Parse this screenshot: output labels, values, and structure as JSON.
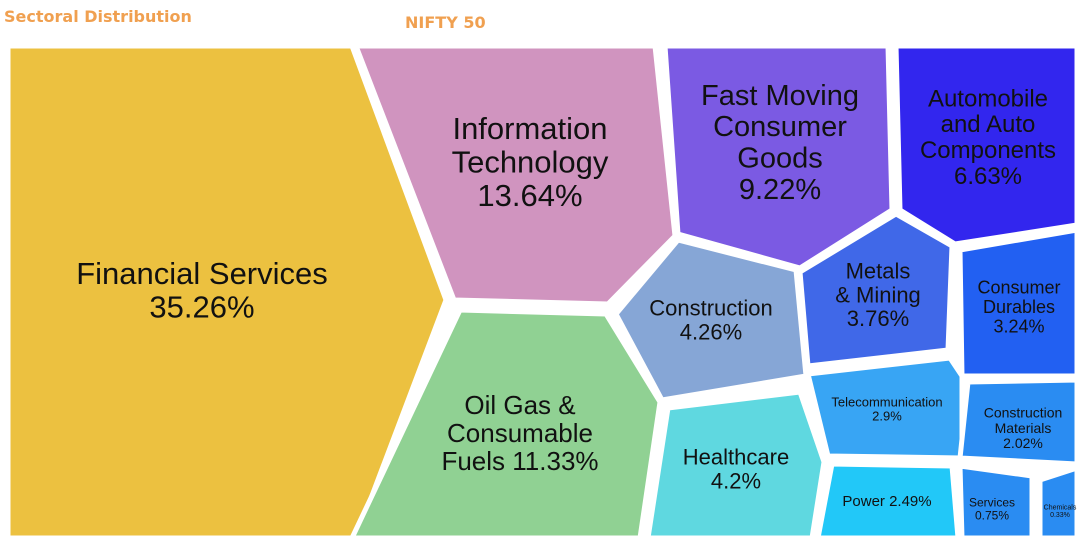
{
  "header": {
    "section_title": "Sectoral Distribution",
    "index_name": "NIFTY 50",
    "accent_color": "#f0a050"
  },
  "chart_data": {
    "type": "voronoi-treemap",
    "title": "NIFTY 50",
    "unit": "%",
    "cells": [
      {
        "name": "Financial Services",
        "value": 35.26,
        "label": [
          "Financial Services",
          "35.26%"
        ],
        "color": "#ecc140"
      },
      {
        "name": "Information Technology",
        "value": 13.64,
        "label": [
          "Information",
          "Technology",
          "13.64%"
        ],
        "color": "#d094bf"
      },
      {
        "name": "Fast Moving Consumer Goods",
        "value": 9.22,
        "label": [
          "Fast Moving",
          "Consumer",
          "Goods",
          "9.22%"
        ],
        "color": "#7b5ae3"
      },
      {
        "name": "Automobile and Auto Components",
        "value": 6.63,
        "label": [
          "Automobile",
          "and Auto",
          "Components",
          "6.63%"
        ],
        "color": "#3226ee"
      },
      {
        "name": "Oil Gas & Consumable Fuels",
        "value": 11.33,
        "label": [
          "Oil Gas &",
          "Consumable",
          "Fuels 11.33%"
        ],
        "color": "#90d193"
      },
      {
        "name": "Construction",
        "value": 4.26,
        "label": [
          "Construction",
          "4.26%"
        ],
        "color": "#86a6d6"
      },
      {
        "name": "Metals & Mining",
        "value": 3.76,
        "label": [
          "Metals",
          "& Mining",
          "3.76%"
        ],
        "color": "#4068e8"
      },
      {
        "name": "Consumer Durables",
        "value": 3.24,
        "label": [
          "Consumer",
          "Durables",
          "3.24%"
        ],
        "color": "#2260f2"
      },
      {
        "name": "Healthcare",
        "value": 4.2,
        "label": [
          "Healthcare",
          "4.2%"
        ],
        "color": "#5fd8e0"
      },
      {
        "name": "Telecommunication",
        "value": 2.9,
        "label": [
          "Telecommunication",
          "2.9%"
        ],
        "color": "#38a5f4"
      },
      {
        "name": "Construction Materials",
        "value": 2.02,
        "label": [
          "Construction",
          "Materials",
          "2.02%"
        ],
        "color": "#2a8cf2"
      },
      {
        "name": "Power",
        "value": 2.49,
        "label": [
          "Power 2.49%"
        ],
        "color": "#22c8f8"
      },
      {
        "name": "Services",
        "value": 0.75,
        "label": [
          "Services",
          "0.75%"
        ],
        "color": "#2a8cf2"
      },
      {
        "name": "Chemicals",
        "value": 0.33,
        "label": [
          "Chemicals",
          "0.33%"
        ],
        "color": "#2a8cf2"
      }
    ]
  }
}
